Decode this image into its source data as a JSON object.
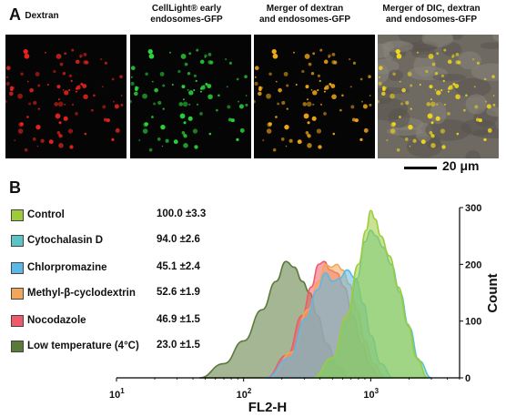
{
  "panel_a": {
    "letter": "A",
    "images": [
      {
        "title_lines": [
          "Dextran"
        ],
        "color": "#e8241c"
      },
      {
        "title_lines": [
          "CellLight® early",
          "endosomes-GFP"
        ],
        "color": "#2cd63a"
      },
      {
        "title_lines": [
          "Merger of dextran",
          "and endosomes-GFP"
        ],
        "color": "#f2a81a"
      },
      {
        "title_lines": [
          "Merger of DIC, dextran",
          "and endosomes-GFP"
        ],
        "color": "#f2d81a"
      }
    ],
    "scale_bar": "20 μm"
  },
  "panel_b": {
    "letter": "B",
    "legend": [
      {
        "label": "Control",
        "value": "100.0 ±3.3",
        "color": "#9ccc3c"
      },
      {
        "label": "Cytochalasin D",
        "value": "94.0 ±2.6",
        "color": "#5bc4c7"
      },
      {
        "label": "Chlorpromazine",
        "value": "45.1 ±2.4",
        "color": "#5cb8e6"
      },
      {
        "label": "Methyl-β-cyclodextrin",
        "value": "52.6 ±1.9",
        "color": "#f2a65a"
      },
      {
        "label": "Nocodazole",
        "value": "46.9 ±1.5",
        "color": "#f05a6a"
      },
      {
        "label": "Low temperature (4°C)",
        "value": "23.0 ±1.5",
        "color": "#5a7a3a"
      }
    ]
  },
  "chart_data": {
    "type": "area",
    "xlabel": "FL2-H",
    "ylabel": "Count",
    "x_scale": "log",
    "xlim": [
      10,
      5000
    ],
    "ylim": [
      0,
      300
    ],
    "x_ticks": [
      {
        "value": 10,
        "label": "10",
        "exp": "1"
      },
      {
        "value": 100,
        "label": "10",
        "exp": "2"
      },
      {
        "value": 1000,
        "label": "10",
        "exp": "3"
      }
    ],
    "y_ticks": [
      0,
      100,
      200,
      300
    ],
    "series": [
      {
        "name": "Low temperature (4°C)",
        "color": "#5a7a3a",
        "x": [
          45,
          70,
          100,
          140,
          180,
          215,
          250,
          290,
          330,
          380,
          450,
          550,
          700
        ],
        "y": [
          0,
          25,
          65,
          120,
          170,
          205,
          195,
          170,
          150,
          110,
          60,
          20,
          0
        ]
      },
      {
        "name": "Nocodazole",
        "color": "#f05a6a",
        "x": [
          150,
          220,
          290,
          340,
          390,
          430,
          480,
          540,
          620,
          720,
          850,
          1000,
          1200
        ],
        "y": [
          0,
          40,
          110,
          160,
          200,
          205,
          190,
          185,
          160,
          110,
          60,
          20,
          0
        ]
      },
      {
        "name": "Methyl-β-cyclodextrin",
        "color": "#f2a65a",
        "x": [
          160,
          240,
          320,
          390,
          440,
          490,
          540,
          600,
          680,
          780,
          900,
          1050,
          1300
        ],
        "y": [
          0,
          45,
          120,
          170,
          200,
          195,
          200,
          190,
          165,
          120,
          65,
          25,
          0
        ]
      },
      {
        "name": "Chlorpromazine",
        "color": "#5cb8e6",
        "x": [
          150,
          230,
          310,
          380,
          440,
          500,
          570,
          650,
          760,
          880,
          1000,
          1200,
          1500
        ],
        "y": [
          0,
          35,
          105,
          155,
          185,
          170,
          175,
          190,
          175,
          130,
          75,
          25,
          0
        ]
      },
      {
        "name": "Cytochalasin D",
        "color": "#5bc4c7",
        "x": [
          350,
          500,
          650,
          780,
          900,
          1000,
          1100,
          1250,
          1450,
          1700,
          2000,
          2400,
          3000
        ],
        "y": [
          0,
          30,
          100,
          175,
          240,
          260,
          250,
          230,
          200,
          150,
          90,
          30,
          0
        ]
      },
      {
        "name": "Control",
        "color": "#9ccc3c",
        "x": [
          350,
          500,
          650,
          800,
          920,
          1000,
          1080,
          1200,
          1400,
          1650,
          1950,
          2300,
          2800
        ],
        "y": [
          0,
          35,
          110,
          200,
          260,
          295,
          280,
          250,
          215,
          160,
          95,
          35,
          0
        ]
      }
    ]
  }
}
